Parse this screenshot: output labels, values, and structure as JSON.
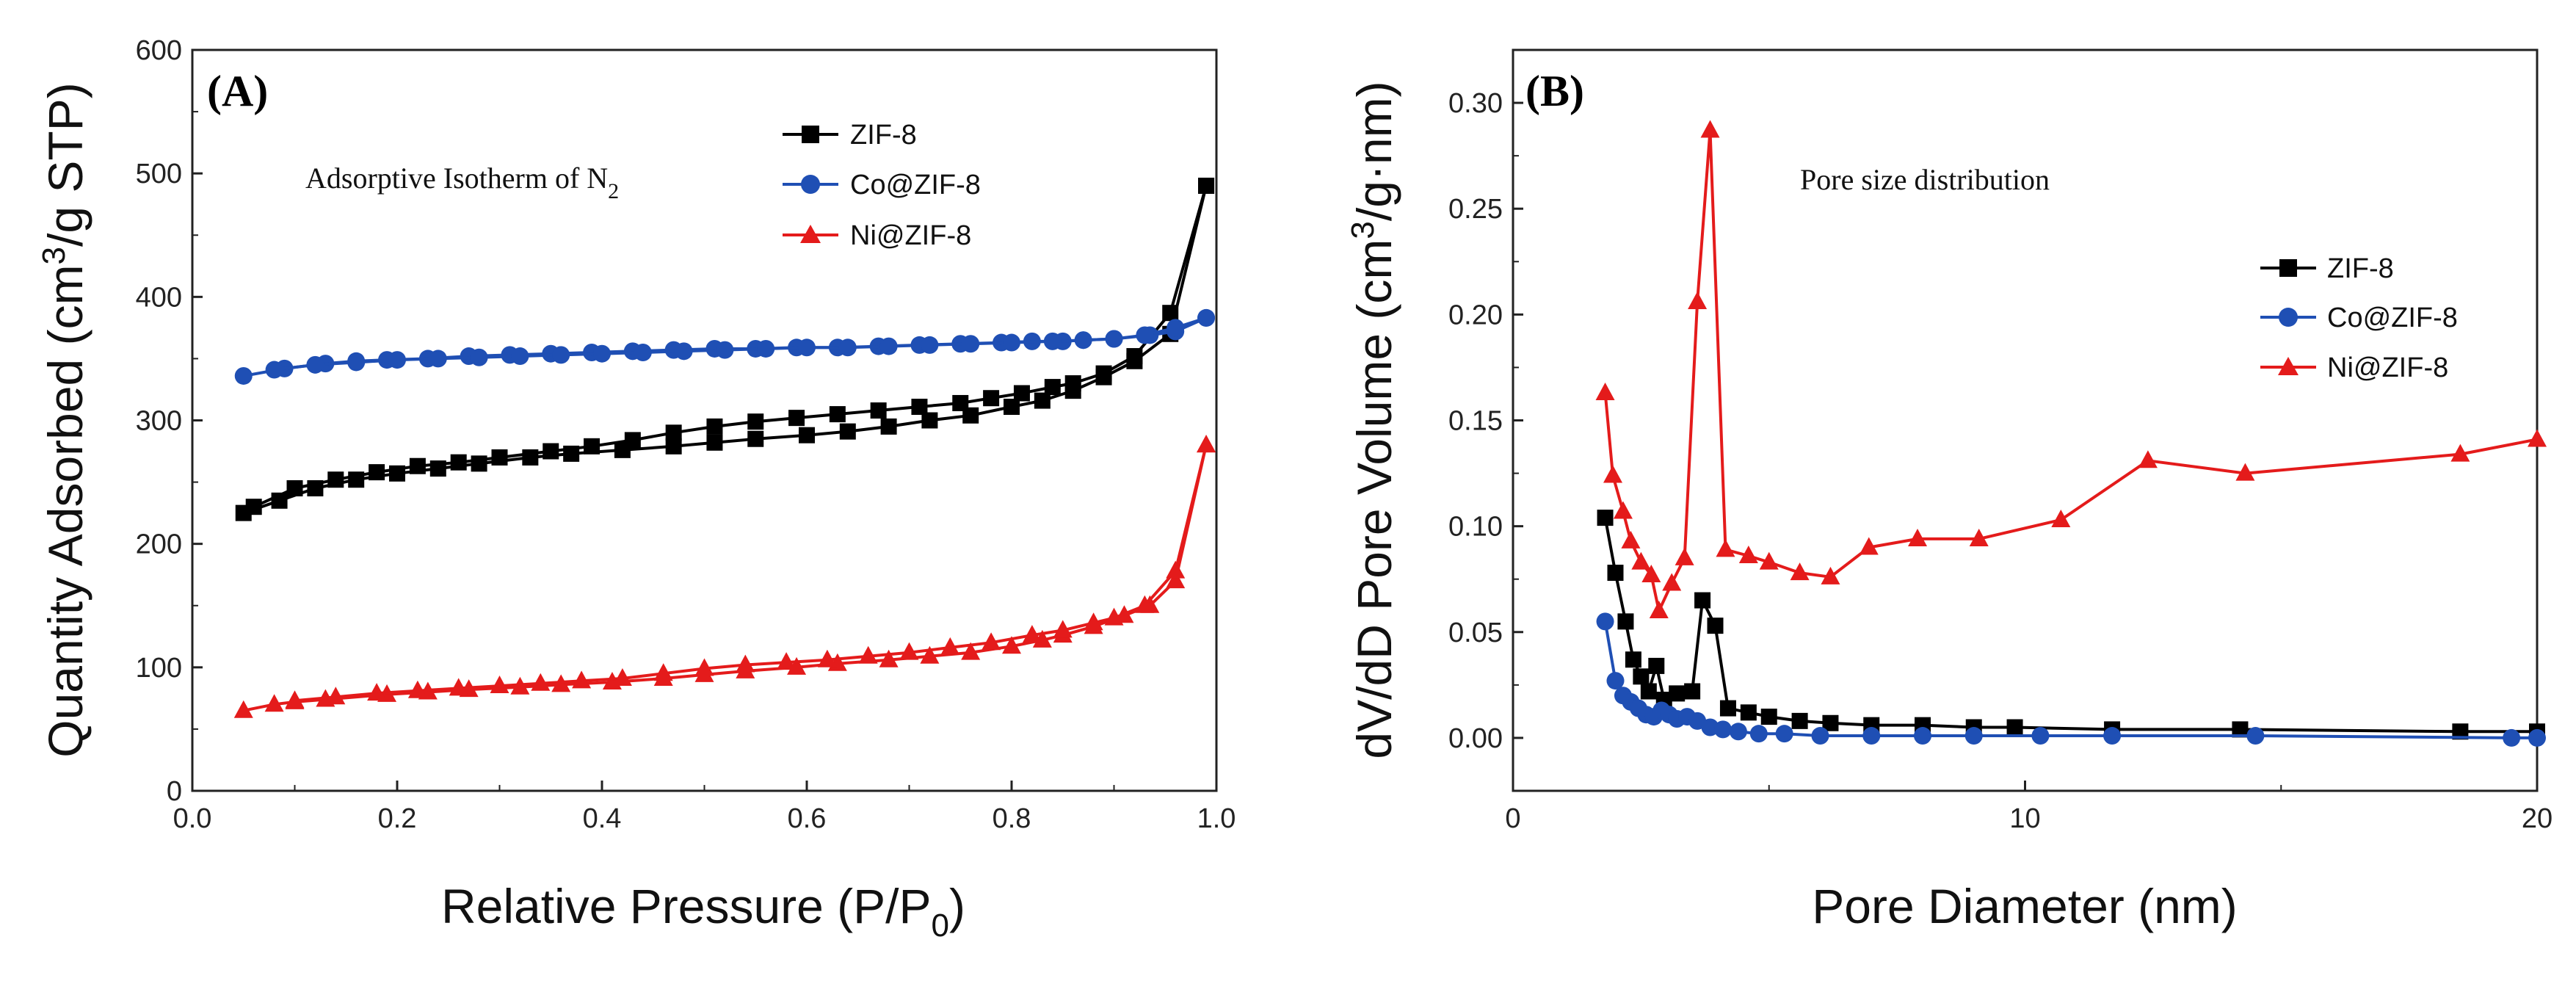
{
  "chart_data": [
    {
      "type": "line",
      "panel_label": "(A)",
      "annotation": "Adsorptive Isotherm of N",
      "annotation_sub": "2",
      "xlabel": "Relative Pressure (P/P",
      "xlabel_sub": "0",
      "xlabel_end": ")",
      "ylabel": "Quantity Adsorbed (cm",
      "ylabel_sup": "3",
      "ylabel_end": "/g STP)",
      "xlim": [
        0.0,
        1.0
      ],
      "ylim": [
        0,
        600
      ],
      "xticks": [
        "0.0",
        "0.2",
        "0.4",
        "0.6",
        "0.8",
        "1.0"
      ],
      "xtick_values": [
        0.0,
        0.2,
        0.4,
        0.6,
        0.8,
        1.0
      ],
      "yticks": [
        "0",
        "100",
        "200",
        "300",
        "400",
        "500",
        "600"
      ],
      "ytick_values": [
        0,
        100,
        200,
        300,
        400,
        500,
        600
      ],
      "legend_position": "top-right",
      "series": [
        {
          "name": "ZIF-8",
          "color": "#000000",
          "marker": "square",
          "adsorption": [
            [
              0.05,
              225
            ],
            [
              0.085,
              235
            ],
            [
              0.12,
              245
            ],
            [
              0.16,
              252
            ],
            [
              0.2,
              257
            ],
            [
              0.24,
              261
            ],
            [
              0.28,
              265
            ],
            [
              0.33,
              270
            ],
            [
              0.37,
              273
            ],
            [
              0.42,
              276
            ],
            [
              0.47,
              279
            ],
            [
              0.51,
              282
            ],
            [
              0.55,
              285
            ],
            [
              0.6,
              288
            ],
            [
              0.64,
              291
            ],
            [
              0.68,
              295
            ],
            [
              0.72,
              300
            ],
            [
              0.76,
              304
            ],
            [
              0.8,
              311
            ],
            [
              0.83,
              316
            ],
            [
              0.86,
              324
            ],
            [
              0.89,
              335
            ],
            [
              0.92,
              348
            ],
            [
              0.955,
              370
            ],
            [
              0.99,
              490
            ]
          ],
          "desorption": [
            [
              0.99,
              490
            ],
            [
              0.955,
              387
            ],
            [
              0.92,
              352
            ],
            [
              0.89,
              338
            ],
            [
              0.86,
              330
            ],
            [
              0.84,
              327
            ],
            [
              0.81,
              322
            ],
            [
              0.78,
              318
            ],
            [
              0.75,
              314
            ],
            [
              0.71,
              311
            ],
            [
              0.67,
              308
            ],
            [
              0.63,
              305
            ],
            [
              0.59,
              302
            ],
            [
              0.55,
              299
            ],
            [
              0.51,
              295
            ],
            [
              0.47,
              290
            ],
            [
              0.43,
              284
            ],
            [
              0.39,
              279
            ],
            [
              0.35,
              275
            ],
            [
              0.3,
              270
            ],
            [
              0.26,
              266
            ],
            [
              0.22,
              263
            ],
            [
              0.18,
              258
            ],
            [
              0.14,
              252
            ],
            [
              0.1,
              245
            ],
            [
              0.06,
              230
            ]
          ]
        },
        {
          "name": "Co@ZIF-8",
          "color": "#1f4fb4",
          "marker": "circle",
          "adsorption": [
            [
              0.05,
              336
            ],
            [
              0.09,
              342
            ],
            [
              0.13,
              346
            ],
            [
              0.16,
              348
            ],
            [
              0.19,
              349
            ],
            [
              0.23,
              350
            ],
            [
              0.27,
              352
            ],
            [
              0.31,
              353
            ],
            [
              0.35,
              354
            ],
            [
              0.39,
              355
            ],
            [
              0.43,
              356
            ],
            [
              0.47,
              357
            ],
            [
              0.51,
              358
            ],
            [
              0.55,
              358
            ],
            [
              0.59,
              359
            ],
            [
              0.63,
              359
            ],
            [
              0.67,
              360
            ],
            [
              0.71,
              361
            ],
            [
              0.75,
              362
            ],
            [
              0.79,
              363
            ],
            [
              0.82,
              364
            ],
            [
              0.85,
              364
            ],
            [
              0.87,
              365
            ],
            [
              0.9,
              366
            ],
            [
              0.935,
              369
            ],
            [
              0.96,
              372
            ],
            [
              0.99,
              383
            ]
          ],
          "desorption": [
            [
              0.99,
              383
            ],
            [
              0.96,
              375
            ],
            [
              0.93,
              369
            ],
            [
              0.9,
              366
            ],
            [
              0.87,
              365
            ],
            [
              0.84,
              364
            ],
            [
              0.8,
              363
            ],
            [
              0.76,
              362
            ],
            [
              0.72,
              361
            ],
            [
              0.68,
              360
            ],
            [
              0.64,
              359
            ],
            [
              0.6,
              359
            ],
            [
              0.56,
              358
            ],
            [
              0.52,
              357
            ],
            [
              0.48,
              356
            ],
            [
              0.44,
              355
            ],
            [
              0.4,
              354
            ],
            [
              0.36,
              353
            ],
            [
              0.32,
              352
            ],
            [
              0.28,
              351
            ],
            [
              0.24,
              350
            ],
            [
              0.2,
              349
            ],
            [
              0.16,
              347
            ],
            [
              0.12,
              345
            ],
            [
              0.08,
              341
            ]
          ]
        },
        {
          "name": "Ni@ZIF-8",
          "color": "#e41b1b",
          "marker": "triangle",
          "adsorption": [
            [
              0.05,
              65
            ],
            [
              0.08,
              70
            ],
            [
              0.1,
              72
            ],
            [
              0.13,
              74
            ],
            [
              0.19,
              78
            ],
            [
              0.23,
              80
            ],
            [
              0.27,
              82
            ],
            [
              0.32,
              84
            ],
            [
              0.36,
              86
            ],
            [
              0.41,
              88
            ],
            [
              0.46,
              91
            ],
            [
              0.5,
              94
            ],
            [
              0.54,
              97
            ],
            [
              0.59,
              100
            ],
            [
              0.63,
              103
            ],
            [
              0.68,
              106
            ],
            [
              0.72,
              109
            ],
            [
              0.76,
              112
            ],
            [
              0.8,
              117
            ],
            [
              0.83,
              122
            ],
            [
              0.85,
              126
            ],
            [
              0.88,
              133
            ],
            [
              0.91,
              142
            ],
            [
              0.935,
              150
            ],
            [
              0.96,
              170
            ],
            [
              0.99,
              280
            ]
          ],
          "desorption": [
            [
              0.99,
              280
            ],
            [
              0.96,
              178
            ],
            [
              0.93,
              150
            ],
            [
              0.9,
              140
            ],
            [
              0.88,
              136
            ],
            [
              0.85,
              130
            ],
            [
              0.82,
              126
            ],
            [
              0.78,
              120
            ],
            [
              0.74,
              116
            ],
            [
              0.7,
              112
            ],
            [
              0.66,
              109
            ],
            [
              0.62,
              106
            ],
            [
              0.58,
              104
            ],
            [
              0.54,
              102
            ],
            [
              0.5,
              99
            ],
            [
              0.46,
              95
            ],
            [
              0.42,
              91
            ],
            [
              0.38,
              89
            ],
            [
              0.34,
              87
            ],
            [
              0.3,
              85
            ],
            [
              0.26,
              83
            ],
            [
              0.22,
              81
            ],
            [
              0.18,
              79
            ],
            [
              0.14,
              76
            ],
            [
              0.1,
              73
            ]
          ]
        }
      ]
    },
    {
      "type": "line",
      "panel_label": "(B)",
      "annotation": "Pore size distribution",
      "xlabel": "Pore Diameter (nm)",
      "ylabel": "dV/dD Pore Volume (cm",
      "ylabel_sup": "3",
      "ylabel_end": "/g·nm)",
      "xlim": [
        0,
        20
      ],
      "ylim": [
        -0.025,
        0.325
      ],
      "xticks": [
        "0",
        "10",
        "20"
      ],
      "xtick_values": [
        0,
        10,
        20
      ],
      "yticks": [
        "0.00",
        "0.05",
        "0.10",
        "0.15",
        "0.20",
        "0.25",
        "0.30"
      ],
      "ytick_values": [
        0.0,
        0.05,
        0.1,
        0.15,
        0.2,
        0.25,
        0.3
      ],
      "legend_position": "right",
      "series": [
        {
          "name": "ZIF-8",
          "color": "#000000",
          "marker": "square",
          "points": [
            [
              1.8,
              0.104
            ],
            [
              2.0,
              0.078
            ],
            [
              2.2,
              0.055
            ],
            [
              2.35,
              0.037
            ],
            [
              2.5,
              0.029
            ],
            [
              2.65,
              0.022
            ],
            [
              2.8,
              0.034
            ],
            [
              2.95,
              0.018
            ],
            [
              3.2,
              0.021
            ],
            [
              3.5,
              0.022
            ],
            [
              3.7,
              0.065
            ],
            [
              3.95,
              0.053
            ],
            [
              4.2,
              0.014
            ],
            [
              4.6,
              0.012
            ],
            [
              5.0,
              0.01
            ],
            [
              5.6,
              0.008
            ],
            [
              6.2,
              0.007
            ],
            [
              7.0,
              0.006
            ],
            [
              8.0,
              0.006
            ],
            [
              9.0,
              0.005
            ],
            [
              9.8,
              0.005
            ],
            [
              11.7,
              0.004
            ],
            [
              14.2,
              0.004
            ],
            [
              18.5,
              0.003
            ],
            [
              20,
              0.003
            ]
          ]
        },
        {
          "name": "Co@ZIF-8",
          "color": "#1f4fb4",
          "marker": "circle",
          "points": [
            [
              1.8,
              0.055
            ],
            [
              2.0,
              0.027
            ],
            [
              2.15,
              0.02
            ],
            [
              2.3,
              0.017
            ],
            [
              2.45,
              0.014
            ],
            [
              2.6,
              0.011
            ],
            [
              2.75,
              0.01
            ],
            [
              2.9,
              0.013
            ],
            [
              3.05,
              0.011
            ],
            [
              3.2,
              0.009
            ],
            [
              3.4,
              0.01
            ],
            [
              3.6,
              0.008
            ],
            [
              3.85,
              0.005
            ],
            [
              4.1,
              0.004
            ],
            [
              4.4,
              0.003
            ],
            [
              4.8,
              0.002
            ],
            [
              5.3,
              0.002
            ],
            [
              6.0,
              0.001
            ],
            [
              7.0,
              0.001
            ],
            [
              8.0,
              0.001
            ],
            [
              9.0,
              0.001
            ],
            [
              10.3,
              0.001
            ],
            [
              11.7,
              0.001
            ],
            [
              14.5,
              0.001
            ],
            [
              19.5,
              0.0
            ],
            [
              20,
              0.0
            ]
          ]
        },
        {
          "name": "Ni@ZIF-8",
          "color": "#e41b1b",
          "marker": "triangle",
          "points": [
            [
              1.8,
              0.163
            ],
            [
              1.95,
              0.124
            ],
            [
              2.15,
              0.107
            ],
            [
              2.3,
              0.093
            ],
            [
              2.5,
              0.083
            ],
            [
              2.7,
              0.077
            ],
            [
              2.85,
              0.06
            ],
            [
              3.1,
              0.073
            ],
            [
              3.35,
              0.085
            ],
            [
              3.6,
              0.206
            ],
            [
              3.85,
              0.287
            ],
            [
              4.15,
              0.089
            ],
            [
              4.6,
              0.086
            ],
            [
              5.0,
              0.083
            ],
            [
              5.6,
              0.078
            ],
            [
              6.2,
              0.076
            ],
            [
              6.95,
              0.09
            ],
            [
              7.9,
              0.094
            ],
            [
              9.1,
              0.094
            ],
            [
              10.7,
              0.103
            ],
            [
              12.4,
              0.131
            ],
            [
              14.3,
              0.125
            ],
            [
              18.5,
              0.134
            ],
            [
              20,
              0.141
            ]
          ]
        }
      ]
    }
  ]
}
